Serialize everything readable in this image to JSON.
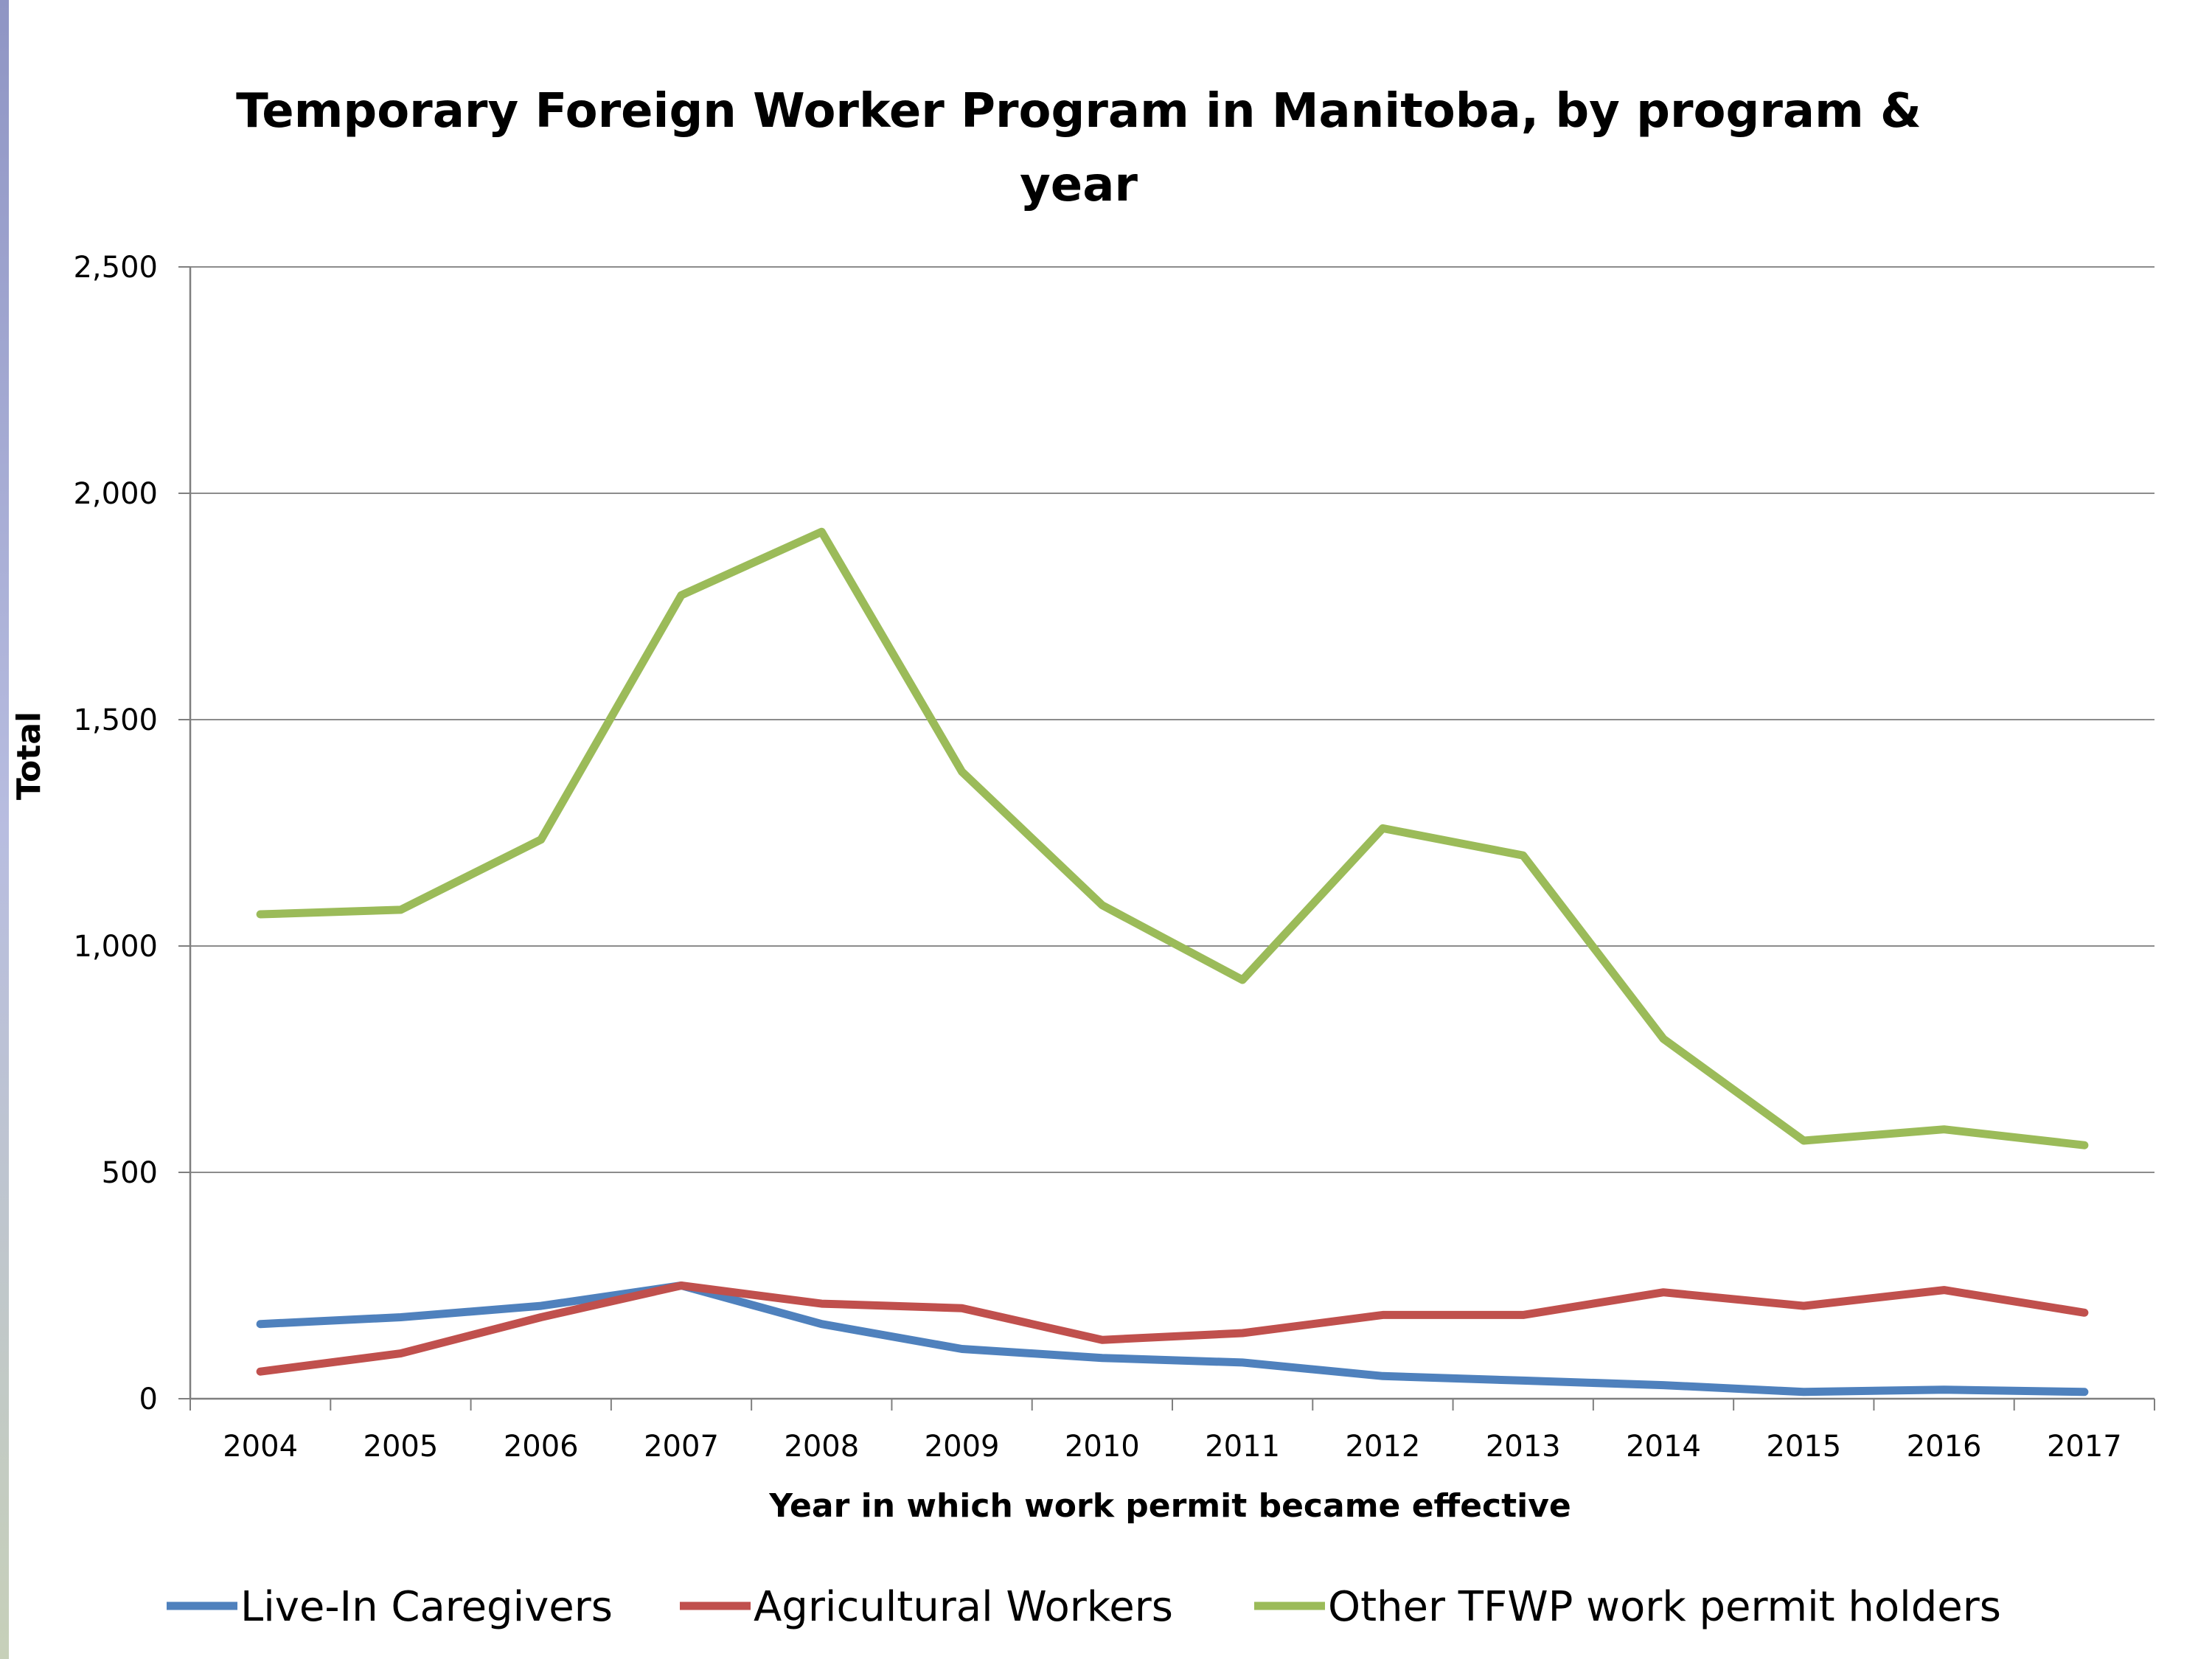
{
  "chart_data": {
    "type": "line",
    "title_lines": [
      "Temporary Foreign Worker Program in Manitoba, by program &",
      "year"
    ],
    "xlabel": "Year in which work permit became effective",
    "ylabel": "Total",
    "categories": [
      "2004",
      "2005",
      "2006",
      "2007",
      "2008",
      "2009",
      "2010",
      "2011",
      "2012",
      "2013",
      "2014",
      "2015",
      "2016",
      "2017"
    ],
    "ylim": [
      0,
      2500
    ],
    "yticks": [
      0,
      500,
      1000,
      1500,
      2000,
      2500
    ],
    "ytick_labels": [
      "0",
      "500",
      "1,000",
      "1,500",
      "2,000",
      "2,500"
    ],
    "grid": true,
    "legend_position": "bottom",
    "series": [
      {
        "name": "Live-In Caregivers",
        "color": "#4f81bd",
        "values": [
          165,
          180,
          205,
          250,
          165,
          110,
          90,
          80,
          50,
          40,
          30,
          15,
          20,
          15
        ]
      },
      {
        "name": "Agricultural Workers",
        "color": "#c0504d",
        "values": [
          60,
          100,
          180,
          250,
          210,
          200,
          130,
          145,
          185,
          185,
          235,
          205,
          240,
          190
        ]
      },
      {
        "name": "Other TFWP work permit holders",
        "color": "#9bbb59",
        "values": [
          1070,
          1080,
          1235,
          1775,
          1915,
          1385,
          1090,
          925,
          1260,
          1200,
          795,
          570,
          595,
          560
        ]
      }
    ]
  }
}
